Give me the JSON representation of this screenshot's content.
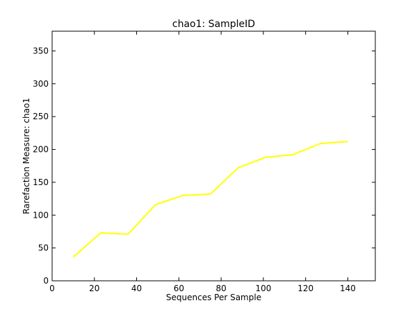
{
  "chart_data": {
    "type": "line",
    "title": "chao1: SampleID",
    "xlabel": "Sequences Per Sample",
    "ylabel": "Rarefaction Measure: chao1",
    "xlim": [
      0,
      153
    ],
    "ylim": [
      0,
      380
    ],
    "xticks": [
      0,
      20,
      40,
      60,
      80,
      100,
      120,
      140
    ],
    "yticks": [
      0,
      50,
      100,
      150,
      200,
      250,
      300,
      350
    ],
    "grid": false,
    "series": [
      {
        "color": "#ffff00",
        "x": [
          10,
          23,
          36,
          49,
          62,
          75,
          88,
          101,
          114,
          127,
          140
        ],
        "y": [
          36,
          73,
          71,
          116,
          130,
          132,
          172,
          188,
          192,
          209,
          212
        ]
      }
    ]
  }
}
